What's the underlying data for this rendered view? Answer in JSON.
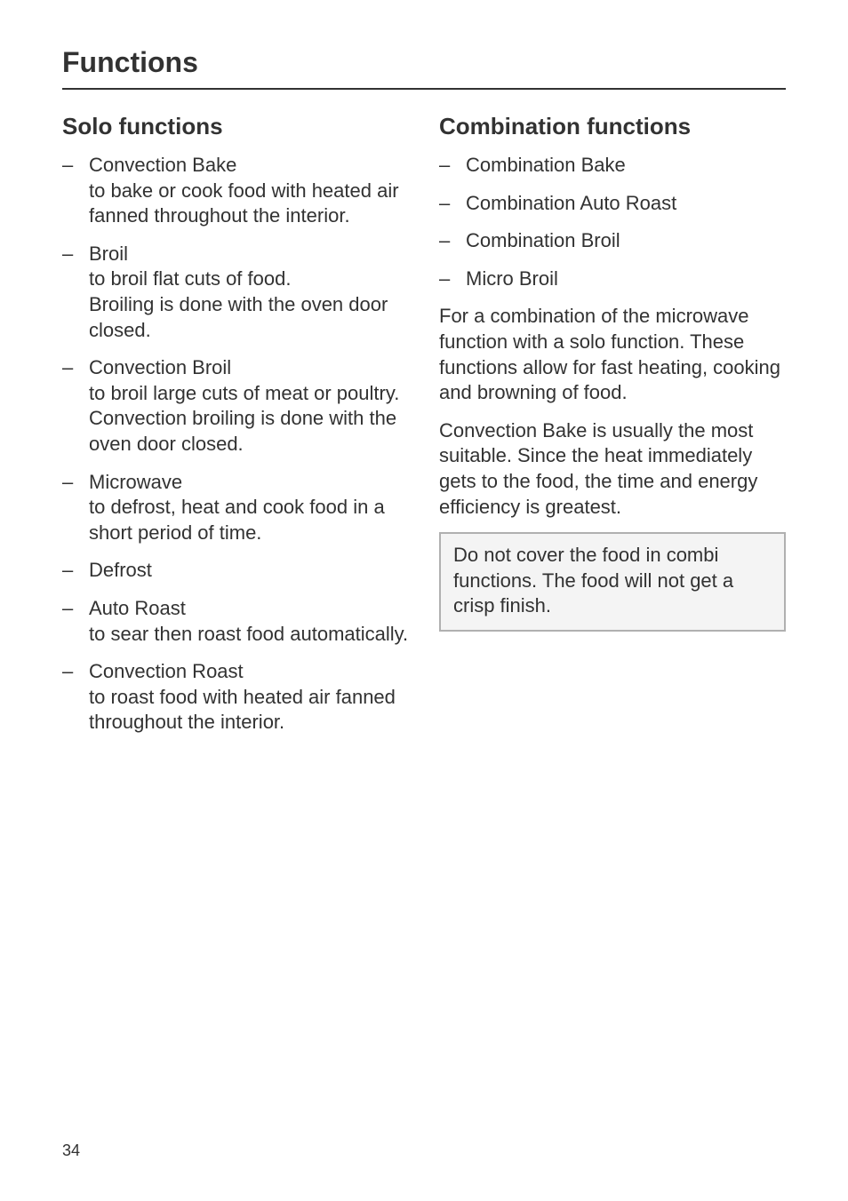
{
  "page": {
    "title": "Functions",
    "number": "34"
  },
  "left": {
    "heading": "Solo functions",
    "items": [
      {
        "title": "Convection Bake",
        "desc": "to bake or cook food with heated air fanned throughout the interior."
      },
      {
        "title": "Broil",
        "desc": "to broil flat cuts of food.\nBroiling is done with the oven door closed."
      },
      {
        "title": "Convection Broil",
        "desc": "to broil large cuts of meat or poultry. Convection broiling is done with the oven door closed."
      },
      {
        "title": "Microwave",
        "desc": "to defrost, heat and cook food in a short period of time."
      },
      {
        "title": "Defrost",
        "desc": ""
      },
      {
        "title": "Auto Roast",
        "desc": "to sear then roast food automatically."
      },
      {
        "title": "Convection Roast",
        "desc": "to roast food with heated air fanned throughout the interior."
      }
    ]
  },
  "right": {
    "heading": "Combination functions",
    "items": [
      {
        "title": "Combination Bake"
      },
      {
        "title": "Combination Auto Roast"
      },
      {
        "title": "Combination Broil"
      },
      {
        "title": "Micro Broil"
      }
    ],
    "para1": "For a combination of the microwave function with a solo function. These functions allow for fast heating, cooking and browning of food.",
    "para2": "Convection Bake is usually the most suitable. Since the heat immediately gets to the food, the time and energy efficiency is greatest.",
    "note": "Do not cover the food in combi functions. The food will not get a crisp finish."
  },
  "style": {
    "text_color": "#323232",
    "background_color": "#ffffff",
    "rule_color": "#323232",
    "note_border_color": "#b0b0b0",
    "note_bg_color": "#f4f4f4",
    "title_fontsize": 32,
    "heading_fontsize": 26,
    "body_fontsize": 22,
    "pagenum_fontsize": 18
  }
}
